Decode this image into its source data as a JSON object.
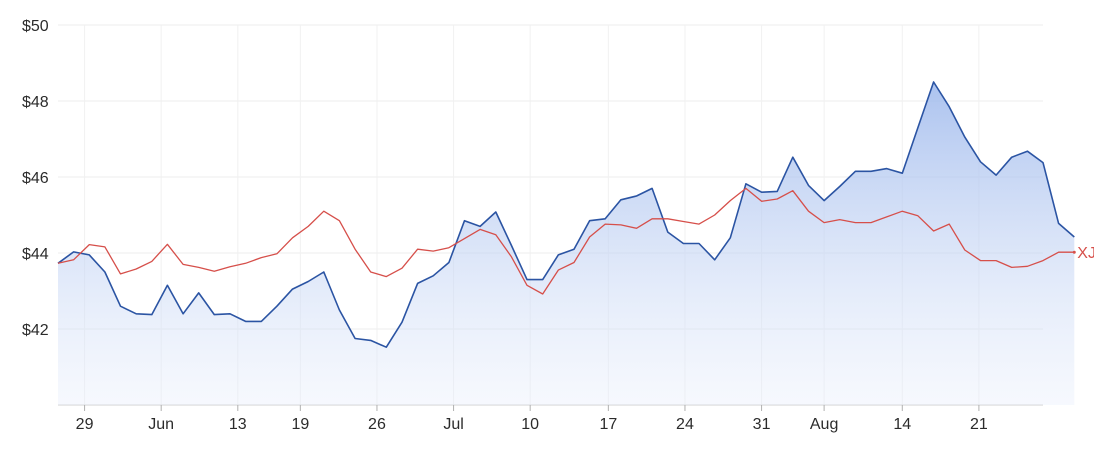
{
  "chart_data": {
    "type": "area",
    "title": "",
    "xlabel": "",
    "ylabel": "",
    "ylim": [
      40.0,
      50.0
    ],
    "y_ticks": [
      {
        "value": 50,
        "label": "$50"
      },
      {
        "value": 48,
        "label": "$48"
      },
      {
        "value": 46,
        "label": "$46"
      },
      {
        "value": 44,
        "label": "$44"
      },
      {
        "value": 42,
        "label": "$42"
      }
    ],
    "x_range": [
      0,
      63
    ],
    "x_ticks": [
      {
        "index": 1.7,
        "label": "29"
      },
      {
        "index": 6.6,
        "label": "Jun"
      },
      {
        "index": 11.5,
        "label": "13"
      },
      {
        "index": 15.5,
        "label": "19"
      },
      {
        "index": 20.4,
        "label": "26"
      },
      {
        "index": 25.3,
        "label": "Jul"
      },
      {
        "index": 30.2,
        "label": "10"
      },
      {
        "index": 35.2,
        "label": "17"
      },
      {
        "index": 40.1,
        "label": "24"
      },
      {
        "index": 45.0,
        "label": "31"
      },
      {
        "index": 49.0,
        "label": "Aug"
      },
      {
        "index": 54.0,
        "label": "14"
      },
      {
        "index": 58.9,
        "label": "21"
      }
    ],
    "grid": true,
    "series": [
      {
        "name": "",
        "color": "#2b54a3",
        "fill": true,
        "values": [
          43.73,
          44.03,
          43.95,
          43.5,
          42.6,
          42.4,
          42.38,
          43.15,
          42.4,
          42.95,
          42.38,
          42.4,
          42.2,
          42.2,
          42.6,
          43.05,
          43.25,
          43.5,
          42.5,
          41.75,
          41.7,
          41.52,
          42.18,
          43.2,
          43.4,
          43.75,
          44.85,
          44.7,
          45.08,
          44.2,
          43.3,
          43.3,
          43.95,
          44.1,
          44.85,
          44.9,
          45.4,
          45.5,
          45.7,
          44.55,
          44.25,
          44.25,
          43.82,
          44.4,
          45.82,
          45.6,
          45.62,
          46.52,
          45.78,
          45.38,
          45.75,
          46.15,
          46.15,
          46.22,
          46.1,
          47.3,
          48.5,
          47.85,
          47.05,
          46.4,
          46.05,
          46.52,
          46.68,
          46.38,
          44.78,
          44.42
        ]
      },
      {
        "name": "XJO",
        "color": "#d64f4a",
        "fill": false,
        "values": [
          43.73,
          43.82,
          44.22,
          44.16,
          43.45,
          43.58,
          43.78,
          44.23,
          43.7,
          43.62,
          43.52,
          43.64,
          43.73,
          43.88,
          43.98,
          44.4,
          44.7,
          45.1,
          44.85,
          44.1,
          43.5,
          43.38,
          43.6,
          44.1,
          44.05,
          44.14,
          44.38,
          44.62,
          44.48,
          43.9,
          43.15,
          42.92,
          43.55,
          43.75,
          44.42,
          44.76,
          44.74,
          44.65,
          44.9,
          44.9,
          44.83,
          44.76,
          45.0,
          45.38,
          45.7,
          45.36,
          45.42,
          45.64,
          45.1,
          44.8,
          44.88,
          44.8,
          44.8,
          44.95,
          45.1,
          44.98,
          44.58,
          44.76,
          44.08,
          43.8,
          43.8,
          43.62,
          43.65,
          43.8,
          44.02,
          44.02
        ]
      }
    ]
  }
}
